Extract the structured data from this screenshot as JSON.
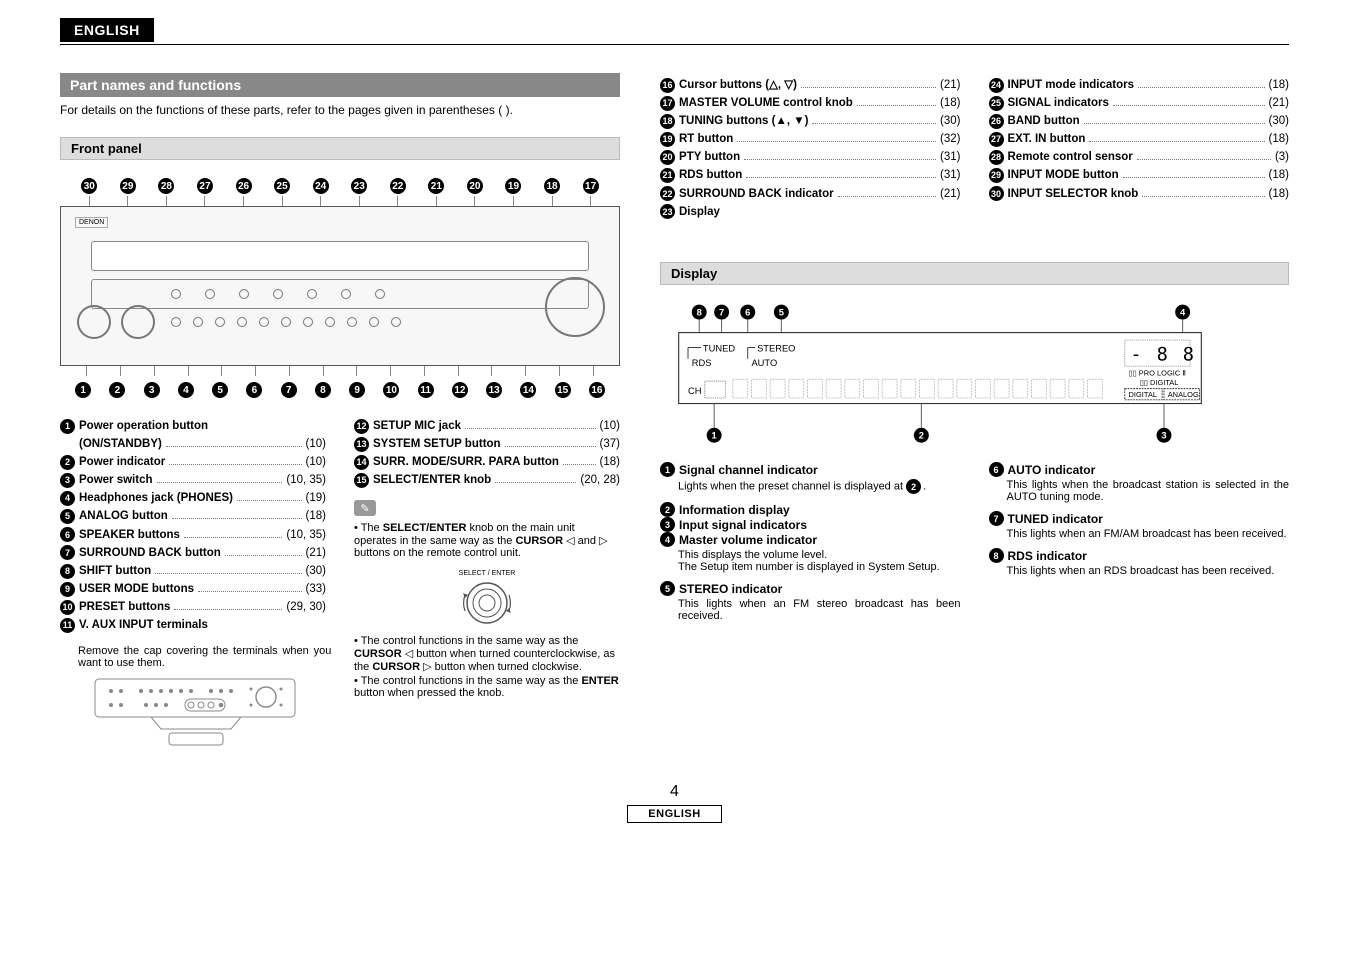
{
  "language_tab": "ENGLISH",
  "section_title": "Part names and functions",
  "section_sub": "For details on the functions of these parts, refer to the pages given in parentheses (  ).",
  "front_panel_header": "Front panel",
  "display_header": "Display",
  "page_number": "4",
  "footer_language": "ENGLISH",
  "front_panel_top_callouts": [
    "30",
    "29",
    "28",
    "27",
    "26",
    "25",
    "24",
    "23",
    "22",
    "21",
    "20",
    "19",
    "18",
    "17"
  ],
  "front_panel_bottom_callouts": [
    "1",
    "2",
    "3",
    "4",
    "5",
    "6",
    "7",
    "8",
    "9",
    "10",
    "11",
    "12",
    "13",
    "14",
    "15",
    "16"
  ],
  "list_colA": [
    {
      "n": "1",
      "label": "Power operation button",
      "nopage": true
    },
    {
      "n": "",
      "label_cont": "(ON/STANDBY)",
      "page": "(10)"
    },
    {
      "n": "2",
      "label": "Power indicator",
      "page": "(10)"
    },
    {
      "n": "3",
      "label": "Power switch",
      "page": "(10, 35)"
    },
    {
      "n": "4",
      "label": "Headphones jack (PHONES)",
      "page": "(19)"
    },
    {
      "n": "5",
      "label": "ANALOG button",
      "page": "(18)"
    },
    {
      "n": "6",
      "label": "SPEAKER buttons",
      "page": "(10, 35)"
    },
    {
      "n": "7",
      "label": "SURROUND BACK button",
      "page": "(21)"
    },
    {
      "n": "8",
      "label": "SHIFT button",
      "page": "(30)"
    },
    {
      "n": "9",
      "label": "USER MODE buttons",
      "page": "(33)"
    },
    {
      "n": "10",
      "label": "PRESET buttons",
      "page": "(29, 30)"
    },
    {
      "n": "11",
      "label": "V. AUX INPUT terminals",
      "nopage": true
    }
  ],
  "vaux_note": "Remove the cap covering the terminals when you want to use them.",
  "list_colB": [
    {
      "n": "12",
      "label": "SETUP MIC jack",
      "page": "(10)"
    },
    {
      "n": "13",
      "label": "SYSTEM SETUP button",
      "page": "(37)"
    },
    {
      "n": "14",
      "label": "SURR. MODE/SURR. PARA button",
      "page": "(18)"
    },
    {
      "n": "15",
      "label": "SELECT/ENTER knob",
      "page": "(20, 28)"
    }
  ],
  "select_enter_caption": "SELECT / ENTER",
  "note1_l1": "• The ",
  "note1_b1": "SELECT/ENTER",
  "note1_l2": " knob on the main unit operates in the same way as the ",
  "note1_b2": "CURSOR",
  "note1_l3": " ◁ and ▷ buttons on the remote control unit.",
  "note2_l1": "• The control functions in the same way as the ",
  "note2_b1": "CURSOR",
  "note2_l2": " ◁ button when turned counterclockwise, as the ",
  "note2_b2": "CURSOR",
  "note2_l3": " ▷ button when turned clockwise.",
  "note3_l1": "• The control functions in the same way as the ",
  "note3_b1": "ENTER",
  "note3_l2": " button when pressed the knob.",
  "list_right_col1": [
    {
      "n": "16",
      "label": "Cursor buttons (△, ▽)",
      "page": "(21)"
    },
    {
      "n": "17",
      "label": "MASTER VOLUME control knob",
      "page": "(18)"
    },
    {
      "n": "18",
      "label": "TUNING buttons (▲, ▼)",
      "page": "(30)"
    },
    {
      "n": "19",
      "label": "RT button",
      "page": "(32)"
    },
    {
      "n": "20",
      "label": "PTY button",
      "page": "(31)"
    },
    {
      "n": "21",
      "label": "RDS button",
      "page": "(31)"
    },
    {
      "n": "22",
      "label": "SURROUND BACK indicator",
      "page": "(21)"
    },
    {
      "n": "23",
      "label": "Display",
      "nopage": true
    }
  ],
  "list_right_col2": [
    {
      "n": "24",
      "label": "INPUT mode indicators",
      "page": "(18)"
    },
    {
      "n": "25",
      "label": "SIGNAL indicators",
      "page": "(21)"
    },
    {
      "n": "26",
      "label": "BAND button",
      "page": "(30)"
    },
    {
      "n": "27",
      "label": "EXT. IN button",
      "page": "(18)"
    },
    {
      "n": "28",
      "label": "Remote control sensor",
      "page": "(3)"
    },
    {
      "n": "29",
      "label": "INPUT MODE button",
      "page": "(18)"
    },
    {
      "n": "30",
      "label": "INPUT SELECTOR knob",
      "page": "(18)"
    }
  ],
  "display_top_callouts": [
    "8",
    "7",
    "6",
    "5",
    "4"
  ],
  "display_bottom_callouts": [
    "1",
    "2",
    "3"
  ],
  "display_labels": {
    "tuned": "TUNED",
    "rds": "RDS",
    "stereo": "STEREO",
    "auto": "AUTO",
    "ch": "CH",
    "prologic": "▯▯ PRO LOGIC Ⅱ",
    "digital": "▯▯ DIGITAL",
    "dig_box": "DIGITAL",
    "ana_box": "ANALOG"
  },
  "display_items_col1": [
    {
      "n": "1",
      "title": "Signal channel indicator",
      "body_pre": "Lights when the preset channel is displayed at ",
      "body_ref": "2",
      "body_post": "."
    },
    {
      "n": "2",
      "title": "Information display"
    },
    {
      "n": "3",
      "title": "Input signal indicators"
    },
    {
      "n": "4",
      "title": "Master volume indicator",
      "body": "This displays the volume level.\nThe Setup item number is displayed in System Setup."
    },
    {
      "n": "5",
      "title": "STEREO indicator",
      "body": "This lights when an FM stereo broadcast has been received."
    }
  ],
  "display_items_col2": [
    {
      "n": "6",
      "title": "AUTO indicator",
      "body": "This lights when the broadcast station is selected in the AUTO tuning mode."
    },
    {
      "n": "7",
      "title": "TUNED indicator",
      "body": "This lights when an FM/AM broadcast has been received."
    },
    {
      "n": "8",
      "title": "RDS indicator",
      "body": "This lights when an RDS broadcast has been received."
    }
  ]
}
